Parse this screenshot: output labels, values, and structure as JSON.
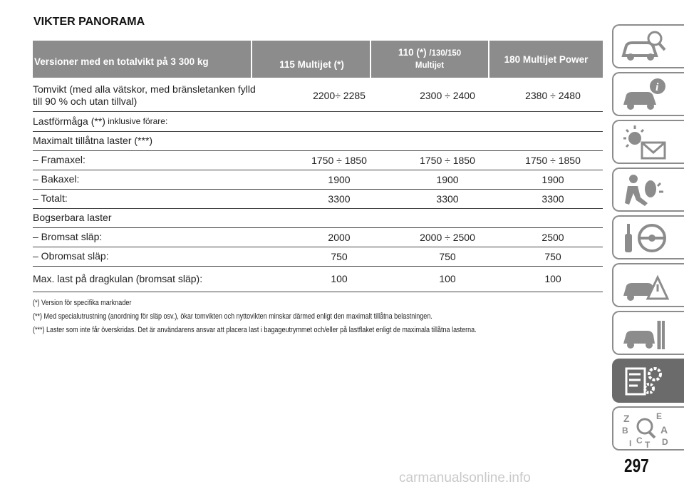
{
  "title": "VIKTER PANORAMA",
  "header": {
    "col0": "Versioner med en totalvikt på 3 300 kg",
    "col1": "115 Multijet (*)",
    "col2_line1": "110 (*)",
    "col2_line1_small": "/130/150",
    "col2_line2": "Multijet",
    "col3": "180 Multijet Power"
  },
  "rows": [
    {
      "label": "Tomvikt (med alla vätskor, med bränsletanken fylld till 90 % och utan tillval)",
      "v1": "2200÷ 2285",
      "v2": "2300 ÷ 2400",
      "v3": "2380 ÷ 2480"
    },
    {
      "label": "Lastförmåga (**)",
      "label_small": " inklusive förare:",
      "v1": "",
      "v2": "",
      "v3": ""
    },
    {
      "label": "Maximalt tillåtna laster (***)",
      "v1": "",
      "v2": "",
      "v3": ""
    },
    {
      "label": "– Framaxel:",
      "v1": "1750 ÷ 1850",
      "v2": "1750 ÷ 1850",
      "v3": "1750 ÷ 1850"
    },
    {
      "label": "– Bakaxel:",
      "v1": "1900",
      "v2": "1900",
      "v3": "1900"
    },
    {
      "label": "– Totalt:",
      "v1": "3300",
      "v2": "3300",
      "v3": "3300"
    },
    {
      "label": "Bogserbara laster",
      "v1": "",
      "v2": "",
      "v3": ""
    },
    {
      "label": "– Bromsat släp:",
      "v1": "2000",
      "v2": "2000 ÷ 2500",
      "v3": "2500"
    },
    {
      "label": "– Obromsat släp:",
      "v1": "750",
      "v2": "750",
      "v3": "750"
    },
    {
      "label": "Max. last på dragkulan (bromsat släp):",
      "v1": "100",
      "v2": "100",
      "v3": "100"
    }
  ],
  "notes": [
    "(*) Version för specifika marknader",
    "(**) Med specialutrustning (anordning för släp osv.), ökar tomvikten och nyttovikten minskar därmed enligt den maximalt tillåtna belastningen.",
    "(***) Laster som inte får överskridas. Det är användarens ansvar att placera last i bagageutrymmet och/eller på lastflaket enligt de maximala tillåtna lasterna."
  ],
  "page_number": "297",
  "watermark": "carmanualsonline.info",
  "sidebar_icons": [
    "car-search-icon",
    "car-info-icon",
    "warning-lights-icon",
    "airbag-passenger-icon",
    "key-steering-wheel-icon",
    "car-warning-triangle-icon",
    "car-tools-icon",
    "specs-gear-icon",
    "alphabet-index-icon"
  ],
  "colors": {
    "header_bg": "#8c8c8c",
    "active_tab": "#6b6b6b"
  }
}
